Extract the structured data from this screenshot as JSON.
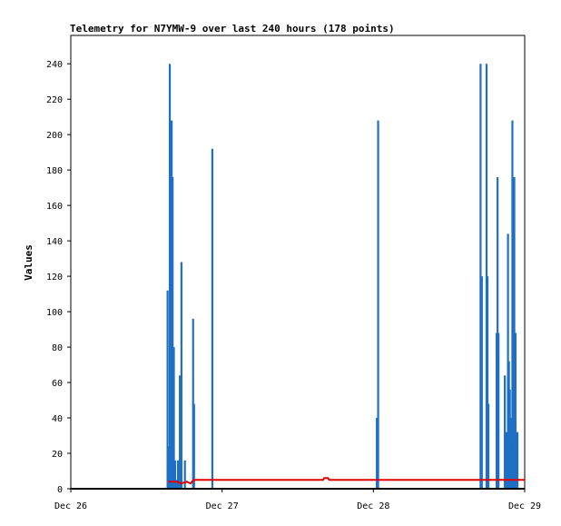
{
  "chart_data": {
    "type": "line",
    "title": "Telemetry for N7YMW-9 over last 240 hours (178 points)",
    "xlabel": "",
    "ylabel": "Values",
    "xlim": [
      0,
      72
    ],
    "ylim": [
      0,
      256
    ],
    "x_ticks": [
      {
        "label": "Dec 26",
        "value": 0
      },
      {
        "label": "Dec 27",
        "value": 24
      },
      {
        "label": "Dec 28",
        "value": 48
      },
      {
        "label": "Dec 29",
        "value": 72
      }
    ],
    "y_ticks": [
      0,
      20,
      40,
      60,
      80,
      100,
      120,
      140,
      160,
      180,
      200,
      220,
      240
    ],
    "grid": false,
    "series": [
      {
        "color": "#1f6fc5",
        "style": "spikes",
        "points": [
          [
            15.35,
            112
          ],
          [
            15.55,
            24
          ],
          [
            15.7,
            240
          ],
          [
            15.85,
            208
          ],
          [
            16.0,
            208
          ],
          [
            16.15,
            176
          ],
          [
            16.35,
            80
          ],
          [
            16.55,
            16
          ],
          [
            16.75,
            5
          ],
          [
            17.0,
            16
          ],
          [
            17.3,
            64
          ],
          [
            17.55,
            128
          ],
          [
            18.1,
            16
          ],
          [
            19.4,
            96
          ],
          [
            19.55,
            48
          ],
          [
            22.45,
            192
          ],
          [
            48.55,
            40
          ],
          [
            48.75,
            208
          ],
          [
            65.0,
            240
          ],
          [
            65.2,
            120
          ],
          [
            65.95,
            240
          ],
          [
            66.1,
            120
          ],
          [
            66.25,
            48
          ],
          [
            67.55,
            88
          ],
          [
            67.7,
            176
          ],
          [
            67.85,
            88
          ],
          [
            68.85,
            64
          ],
          [
            69.1,
            32
          ],
          [
            69.35,
            144
          ],
          [
            69.5,
            72
          ],
          [
            69.65,
            56
          ],
          [
            69.85,
            40
          ],
          [
            70.05,
            208
          ],
          [
            70.2,
            24
          ],
          [
            70.35,
            176
          ],
          [
            70.55,
            88
          ],
          [
            70.85,
            32
          ]
        ]
      },
      {
        "color": "#e00000",
        "style": "line",
        "points": [
          [
            15.5,
            4
          ],
          [
            16.8,
            4
          ],
          [
            17.5,
            3
          ],
          [
            18.4,
            4
          ],
          [
            19.0,
            3
          ],
          [
            19.5,
            5
          ],
          [
            40.0,
            5
          ],
          [
            40.2,
            6
          ],
          [
            40.8,
            6
          ],
          [
            41.0,
            5
          ],
          [
            72,
            5
          ]
        ]
      }
    ]
  }
}
